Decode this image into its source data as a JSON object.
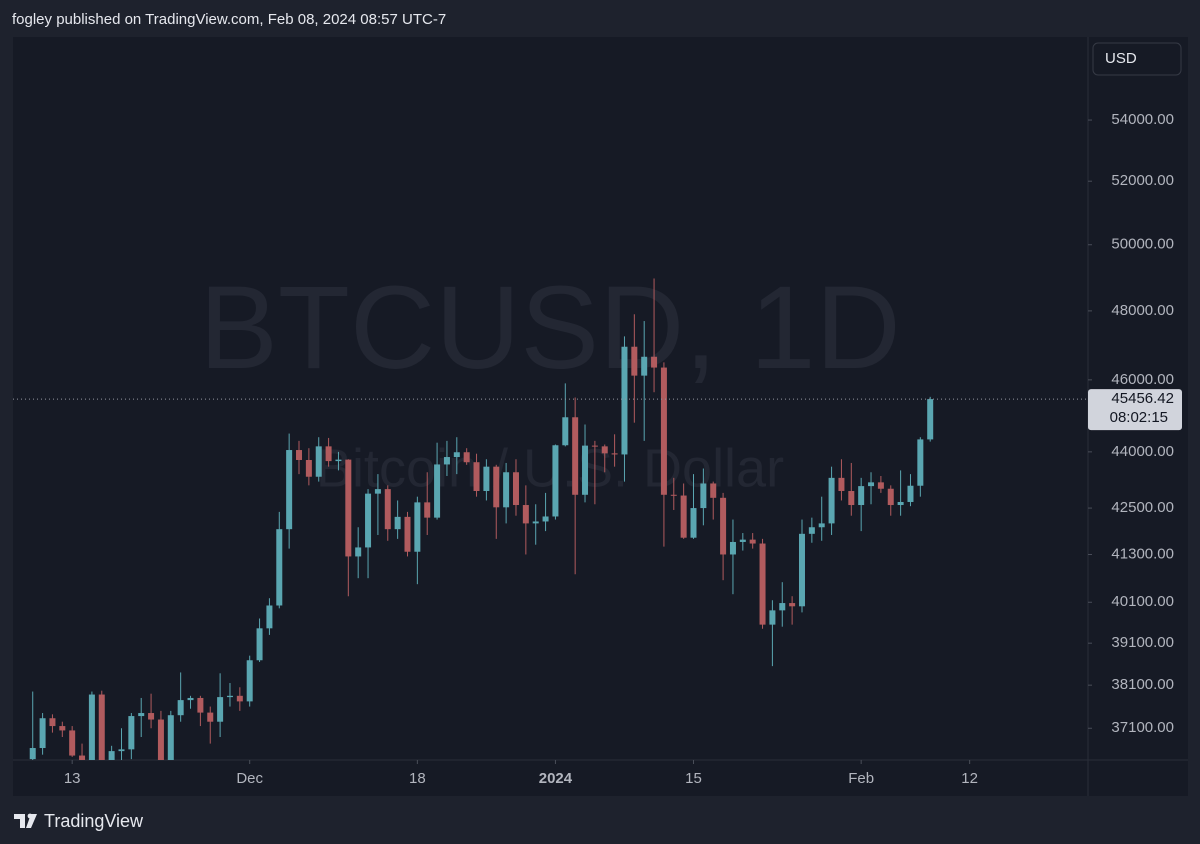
{
  "header": "fogley published on TradingView.com, Feb 08, 2024 08:57 UTC-7",
  "footer_brand": "TradingView",
  "chart_data": {
    "type": "candlestick",
    "watermark": "BTCUSD, 1D",
    "watermark_subtitle": "Bitcoin / U.S. Dollar",
    "currency": "USD",
    "last_price": 45456.42,
    "countdown": "08:02:15",
    "log_scale": true,
    "up_color": "#5aa6b1",
    "down_color": "#b15b5e",
    "ylim": [
      36380,
      56840
    ],
    "yticks": [
      {
        "value": 37100,
        "label": "37100.00"
      },
      {
        "value": 38100,
        "label": "38100.00"
      },
      {
        "value": 39100,
        "label": "39100.00"
      },
      {
        "value": 40100,
        "label": "40100.00"
      },
      {
        "value": 41300,
        "label": "41300.00"
      },
      {
        "value": 42500,
        "label": "42500.00"
      },
      {
        "value": 44000,
        "label": "44000.00"
      },
      {
        "value": 46000,
        "label": "46000.00"
      },
      {
        "value": 48000,
        "label": "48000.00"
      },
      {
        "value": 50000,
        "label": "50000.00"
      },
      {
        "value": 52000,
        "label": "52000.00"
      },
      {
        "value": 54000,
        "label": "54000.00"
      }
    ],
    "xlim": [
      "2023-11-07",
      "2024-02-24"
    ],
    "xticks": [
      {
        "value": "2023-11-13",
        "label": "13"
      },
      {
        "value": "2023-12-01",
        "label": "Dec"
      },
      {
        "value": "2023-12-18",
        "label": "18"
      },
      {
        "value": "2024-01-01",
        "label": "2024"
      },
      {
        "value": "2024-01-15",
        "label": "15"
      },
      {
        "value": "2024-02-01",
        "label": "Feb"
      },
      {
        "value": "2024-02-12",
        "label": "12"
      }
    ],
    "x": [
      "2023-11-09",
      "2023-11-10",
      "2023-11-11",
      "2023-11-12",
      "2023-11-13",
      "2023-11-14",
      "2023-11-15",
      "2023-11-16",
      "2023-11-17",
      "2023-11-18",
      "2023-11-19",
      "2023-11-20",
      "2023-11-21",
      "2023-11-22",
      "2023-11-23",
      "2023-11-24",
      "2023-11-25",
      "2023-11-26",
      "2023-11-27",
      "2023-11-28",
      "2023-11-29",
      "2023-11-30",
      "2023-12-01",
      "2023-12-02",
      "2023-12-03",
      "2023-12-04",
      "2023-12-05",
      "2023-12-06",
      "2023-12-07",
      "2023-12-08",
      "2023-12-09",
      "2023-12-10",
      "2023-12-11",
      "2023-12-12",
      "2023-12-13",
      "2023-12-14",
      "2023-12-15",
      "2023-12-16",
      "2023-12-17",
      "2023-12-18",
      "2023-12-19",
      "2023-12-20",
      "2023-12-21",
      "2023-12-22",
      "2023-12-23",
      "2023-12-24",
      "2023-12-25",
      "2023-12-26",
      "2023-12-27",
      "2023-12-28",
      "2023-12-29",
      "2023-12-30",
      "2023-12-31",
      "2024-01-01",
      "2024-01-02",
      "2024-01-03",
      "2024-01-04",
      "2024-01-05",
      "2024-01-06",
      "2024-01-07",
      "2024-01-08",
      "2024-01-09",
      "2024-01-10",
      "2024-01-11",
      "2024-01-12",
      "2024-01-13",
      "2024-01-14",
      "2024-01-15",
      "2024-01-16",
      "2024-01-17",
      "2024-01-18",
      "2024-01-19",
      "2024-01-20",
      "2024-01-21",
      "2024-01-22",
      "2024-01-23",
      "2024-01-24",
      "2024-01-25",
      "2024-01-26",
      "2024-01-27",
      "2024-01-28",
      "2024-01-29",
      "2024-01-30",
      "2024-01-31",
      "2024-02-01",
      "2024-02-02",
      "2024-02-03",
      "2024-02-04",
      "2024-02-05",
      "2024-02-06",
      "2024-02-07",
      "2024-02-08"
    ],
    "open": [
      36400,
      36650,
      37330,
      37150,
      37050,
      36480,
      35550,
      37880,
      36160,
      36580,
      36620,
      37380,
      37450,
      37300,
      35800,
      37400,
      37750,
      37800,
      37460,
      37250,
      37820,
      37850,
      37720,
      38690,
      39460,
      40020,
      41950,
      44050,
      43780,
      43330,
      44150,
      43750,
      43790,
      41250,
      41480,
      42880,
      43000,
      41950,
      42270,
      41370,
      42650,
      42250,
      43660,
      43860,
      43990,
      43720,
      42950,
      43600,
      42520,
      43450,
      42580,
      42100,
      42150,
      42280,
      44180,
      44950,
      42850,
      44170,
      44150,
      43960,
      43930,
      46950,
      46120,
      46660,
      46350,
      42850,
      42830,
      41730,
      42500,
      43150,
      42770,
      41300,
      41620,
      41680,
      41580,
      39550,
      39900,
      40080,
      40000,
      41830,
      42000,
      42100,
      43300,
      42950,
      42580,
      43080,
      43180,
      43010,
      42580,
      42660,
      43090,
      44340
    ],
    "high": [
      37950,
      37450,
      37420,
      37250,
      37150,
      36750,
      37950,
      37970,
      36700,
      37100,
      37450,
      37800,
      37900,
      37500,
      37500,
      38400,
      37850,
      37850,
      37600,
      38380,
      38150,
      38050,
      38800,
      39700,
      40200,
      42400,
      44500,
      44300,
      44100,
      44400,
      44380,
      44000,
      43800,
      42000,
      43000,
      43400,
      43100,
      42700,
      42400,
      42800,
      43450,
      44250,
      44300,
      44400,
      44100,
      43950,
      43800,
      43650,
      43700,
      43800,
      43100,
      42600,
      42900,
      44200,
      45900,
      45500,
      44750,
      44300,
      44200,
      44480,
      47250,
      47900,
      47700,
      48970,
      46500,
      43300,
      43150,
      43400,
      43550,
      43200,
      42900,
      42200,
      41850,
      41850,
      41700,
      40150,
      40600,
      40250,
      42200,
      42250,
      42800,
      43600,
      43800,
      43700,
      43300,
      43450,
      43350,
      43100,
      43500,
      43400,
      44400,
      45520
    ],
    "low": [
      36300,
      36500,
      37000,
      36900,
      36450,
      35300,
      35400,
      35700,
      35900,
      36300,
      36400,
      36900,
      37100,
      35700,
      35700,
      37250,
      37550,
      37150,
      36750,
      36900,
      37600,
      37500,
      37600,
      38650,
      39300,
      39950,
      41450,
      43400,
      43100,
      43200,
      43600,
      43500,
      40250,
      40700,
      40700,
      41800,
      41650,
      41700,
      41250,
      40550,
      41800,
      42200,
      43350,
      43400,
      43650,
      42800,
      42700,
      41700,
      42100,
      42300,
      41300,
      41550,
      41900,
      42200,
      44150,
      40800,
      42650,
      42600,
      43450,
      43600,
      43200,
      44800,
      44300,
      45650,
      41500,
      42450,
      41700,
      41700,
      42050,
      42200,
      40650,
      40300,
      41400,
      41450,
      39450,
      38550,
      39500,
      39550,
      39850,
      41600,
      41650,
      41800,
      42700,
      42300,
      41900,
      42600,
      42900,
      42300,
      42300,
      42550,
      42800,
      44280
    ],
    "close": [
      36650,
      37330,
      37150,
      37050,
      36480,
      35550,
      37880,
      36160,
      36580,
      36620,
      37380,
      37450,
      37300,
      35800,
      37400,
      37750,
      37800,
      37460,
      37250,
      37820,
      37850,
      37720,
      38690,
      39460,
      40020,
      41950,
      44050,
      43780,
      43330,
      44150,
      43750,
      43790,
      41250,
      41480,
      42880,
      43000,
      41950,
      42270,
      41370,
      42650,
      42250,
      43660,
      43860,
      43990,
      43720,
      42950,
      43600,
      42520,
      43450,
      42580,
      42100,
      42150,
      42280,
      44180,
      44950,
      42850,
      44170,
      44150,
      43960,
      43930,
      46950,
      46120,
      46660,
      46350,
      42850,
      42830,
      41730,
      42500,
      43150,
      42770,
      41300,
      41620,
      41680,
      41580,
      39550,
      39900,
      40080,
      40000,
      41830,
      42000,
      42100,
      43300,
      42950,
      42580,
      43080,
      43180,
      43010,
      42580,
      42660,
      43090,
      44340,
      45456.42
    ]
  }
}
